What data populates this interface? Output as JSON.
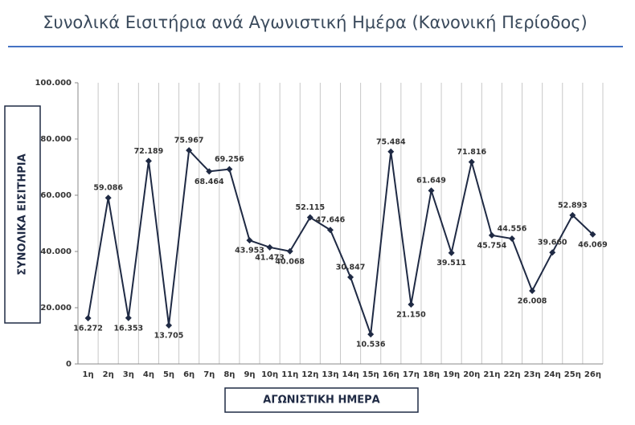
{
  "chart_data": {
    "type": "line",
    "title": "Συνολικά Εισιτήρια ανά Αγωνιστική Ημέρα (Κανονική Περίοδος)",
    "x_label": "ΑΓΩΝΙΣΤΙΚΗ ΗΜΕΡΑ",
    "y_label": "ΣΥΝΟΛΙΚΑ ΕΙΣΙΤΗΡΙΑ",
    "categories": [
      "1η",
      "2η",
      "3η",
      "4η",
      "5η",
      "6η",
      "7η",
      "8η",
      "9η",
      "10η",
      "11η",
      "12η",
      "13η",
      "14η",
      "15η",
      "16η",
      "17η",
      "18η",
      "19η",
      "20η",
      "21η",
      "22η",
      "23η",
      "24η",
      "25η",
      "26η"
    ],
    "values": [
      16272,
      59086,
      16353,
      72189,
      13705,
      75967,
      68464,
      69256,
      43953,
      41473,
      40068,
      52115,
      47646,
      30847,
      10536,
      75484,
      21150,
      61649,
      39511,
      71816,
      45754,
      44556,
      26008,
      39660,
      52893,
      46069
    ],
    "value_labels": [
      "16.272",
      "59.086",
      "16.353",
      "72.189",
      "13.705",
      "75.967",
      "68.464",
      "69.256",
      "43.953",
      "41.473",
      "40.068",
      "52.115",
      "47.646",
      "30.847",
      "10.536",
      "75.484",
      "21.150",
      "61.649",
      "39.511",
      "71.816",
      "45.754",
      "44.556",
      "26.008",
      "39.660",
      "52.893",
      "46.069"
    ],
    "color": "#1f2a44",
    "ylim": [
      0,
      100000
    ],
    "yticks": [
      0,
      {
        "value": 20000,
        "label": "20.000"
      },
      {
        "value": 40000,
        "label": "40.000"
      },
      {
        "value": 60000,
        "label": "60.000"
      },
      {
        "value": 80000,
        "label": "80.000"
      },
      {
        "value": 100000,
        "label": "100.000"
      }
    ]
  }
}
